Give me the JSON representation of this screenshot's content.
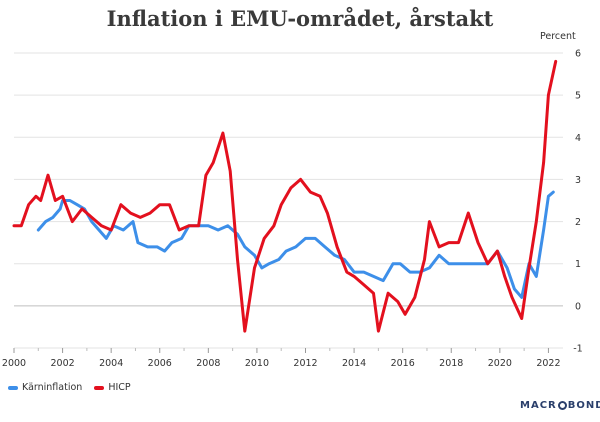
{
  "title": "Inflation i EMU-området, årstakt",
  "unit": "Percent",
  "brand": {
    "left": "MACR",
    "right": "BOND"
  },
  "colors": {
    "karn": "#3d8fe9",
    "hicp": "#e3101e",
    "grid": "#e3e3e3",
    "zero": "#bfbfbf"
  },
  "chart_data": {
    "type": "line",
    "title": "Inflation i EMU-området, årstakt",
    "ylabel": "Percent",
    "xlim": [
      2000,
      2022.6
    ],
    "ylim": [
      -1,
      6
    ],
    "xticks": [
      "2000",
      "2002",
      "2004",
      "2006",
      "2008",
      "2010",
      "2012",
      "2014",
      "2016",
      "2018",
      "2020",
      "2022"
    ],
    "yticks": [
      "-1",
      "0",
      "1",
      "2",
      "3",
      "4",
      "5",
      "6"
    ],
    "legend_position": "bottom-left",
    "series": [
      {
        "name": "Kärninflation",
        "color": "#3d8fe9",
        "points": [
          [
            2001.0,
            1.8
          ],
          [
            2001.3,
            2.0
          ],
          [
            2001.6,
            2.1
          ],
          [
            2001.9,
            2.3
          ],
          [
            2002.0,
            2.5
          ],
          [
            2002.3,
            2.5
          ],
          [
            2002.6,
            2.4
          ],
          [
            2002.9,
            2.3
          ],
          [
            2003.2,
            2.0
          ],
          [
            2003.5,
            1.8
          ],
          [
            2003.8,
            1.6
          ],
          [
            2004.1,
            1.9
          ],
          [
            2004.5,
            1.8
          ],
          [
            2004.9,
            2.0
          ],
          [
            2005.1,
            1.5
          ],
          [
            2005.5,
            1.4
          ],
          [
            2005.9,
            1.4
          ],
          [
            2006.2,
            1.3
          ],
          [
            2006.5,
            1.5
          ],
          [
            2006.9,
            1.6
          ],
          [
            2007.2,
            1.9
          ],
          [
            2007.6,
            1.9
          ],
          [
            2008.0,
            1.9
          ],
          [
            2008.4,
            1.8
          ],
          [
            2008.8,
            1.9
          ],
          [
            2009.2,
            1.7
          ],
          [
            2009.5,
            1.4
          ],
          [
            2009.9,
            1.2
          ],
          [
            2010.2,
            0.9
          ],
          [
            2010.5,
            1.0
          ],
          [
            2010.9,
            1.1
          ],
          [
            2011.2,
            1.3
          ],
          [
            2011.6,
            1.4
          ],
          [
            2012.0,
            1.6
          ],
          [
            2012.4,
            1.6
          ],
          [
            2012.8,
            1.4
          ],
          [
            2013.2,
            1.2
          ],
          [
            2013.6,
            1.1
          ],
          [
            2014.0,
            0.8
          ],
          [
            2014.4,
            0.8
          ],
          [
            2014.8,
            0.7
          ],
          [
            2015.2,
            0.6
          ],
          [
            2015.6,
            1.0
          ],
          [
            2015.9,
            1.0
          ],
          [
            2016.3,
            0.8
          ],
          [
            2016.7,
            0.8
          ],
          [
            2017.1,
            0.9
          ],
          [
            2017.5,
            1.2
          ],
          [
            2017.9,
            1.0
          ],
          [
            2018.3,
            1.0
          ],
          [
            2018.7,
            1.0
          ],
          [
            2019.1,
            1.0
          ],
          [
            2019.5,
            1.0
          ],
          [
            2019.9,
            1.3
          ],
          [
            2020.3,
            0.9
          ],
          [
            2020.6,
            0.4
          ],
          [
            2020.9,
            0.2
          ],
          [
            2021.2,
            1.0
          ],
          [
            2021.5,
            0.7
          ],
          [
            2021.8,
            1.8
          ],
          [
            2022.0,
            2.6
          ],
          [
            2022.2,
            2.7
          ]
        ]
      },
      {
        "name": "HICP",
        "color": "#e3101e",
        "points": [
          [
            2000.0,
            1.9
          ],
          [
            2000.3,
            1.9
          ],
          [
            2000.6,
            2.4
          ],
          [
            2000.9,
            2.6
          ],
          [
            2001.1,
            2.5
          ],
          [
            2001.4,
            3.1
          ],
          [
            2001.7,
            2.5
          ],
          [
            2002.0,
            2.6
          ],
          [
            2002.4,
            2.0
          ],
          [
            2002.8,
            2.3
          ],
          [
            2003.2,
            2.1
          ],
          [
            2003.6,
            1.9
          ],
          [
            2004.0,
            1.8
          ],
          [
            2004.4,
            2.4
          ],
          [
            2004.8,
            2.2
          ],
          [
            2005.2,
            2.1
          ],
          [
            2005.6,
            2.2
          ],
          [
            2006.0,
            2.4
          ],
          [
            2006.4,
            2.4
          ],
          [
            2006.8,
            1.8
          ],
          [
            2007.2,
            1.9
          ],
          [
            2007.6,
            1.9
          ],
          [
            2007.9,
            3.1
          ],
          [
            2008.2,
            3.4
          ],
          [
            2008.6,
            4.1
          ],
          [
            2008.9,
            3.2
          ],
          [
            2009.2,
            1.1
          ],
          [
            2009.5,
            -0.6
          ],
          [
            2009.9,
            0.9
          ],
          [
            2010.3,
            1.6
          ],
          [
            2010.7,
            1.9
          ],
          [
            2011.0,
            2.4
          ],
          [
            2011.4,
            2.8
          ],
          [
            2011.8,
            3.0
          ],
          [
            2012.2,
            2.7
          ],
          [
            2012.6,
            2.6
          ],
          [
            2012.9,
            2.2
          ],
          [
            2013.3,
            1.4
          ],
          [
            2013.7,
            0.8
          ],
          [
            2014.0,
            0.7
          ],
          [
            2014.4,
            0.5
          ],
          [
            2014.8,
            0.3
          ],
          [
            2015.0,
            -0.6
          ],
          [
            2015.4,
            0.3
          ],
          [
            2015.8,
            0.1
          ],
          [
            2016.1,
            -0.2
          ],
          [
            2016.5,
            0.2
          ],
          [
            2016.9,
            1.1
          ],
          [
            2017.1,
            2.0
          ],
          [
            2017.5,
            1.4
          ],
          [
            2017.9,
            1.5
          ],
          [
            2018.3,
            1.5
          ],
          [
            2018.7,
            2.2
          ],
          [
            2019.1,
            1.5
          ],
          [
            2019.5,
            1.0
          ],
          [
            2019.9,
            1.3
          ],
          [
            2020.2,
            0.7
          ],
          [
            2020.5,
            0.2
          ],
          [
            2020.9,
            -0.3
          ],
          [
            2021.2,
            0.9
          ],
          [
            2021.5,
            2.0
          ],
          [
            2021.8,
            3.4
          ],
          [
            2022.0,
            5.0
          ],
          [
            2022.3,
            5.8
          ]
        ]
      }
    ]
  }
}
